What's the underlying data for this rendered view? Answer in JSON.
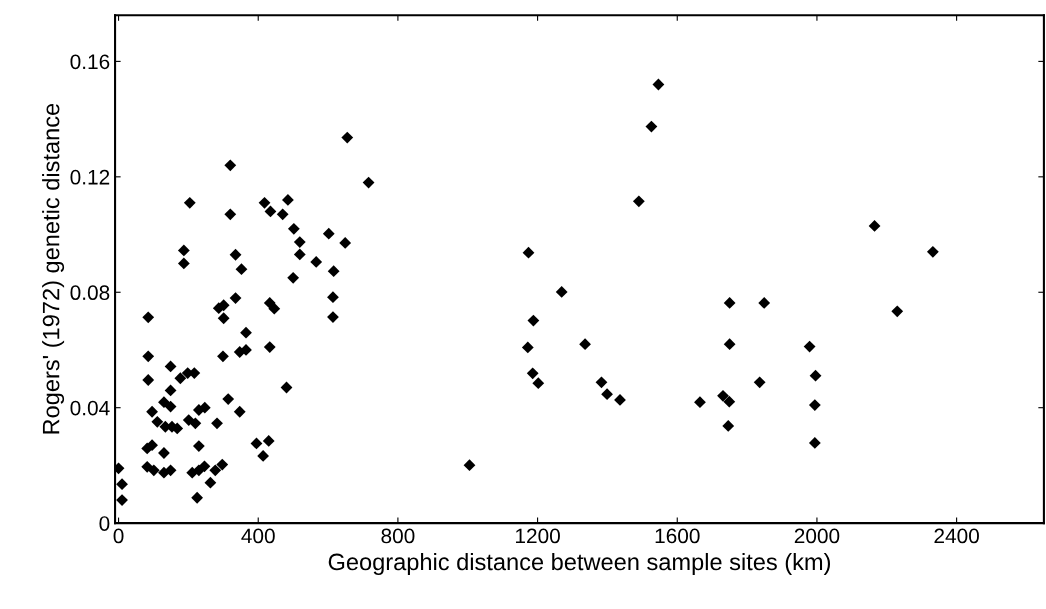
{
  "chart_data": {
    "type": "scatter",
    "xlabel": "Geographic distance between sample sites (km)",
    "ylabel": "Rogers' (1972) genetic distance",
    "xlim": [
      -10,
      2650
    ],
    "ylim": [
      0,
      0.176
    ],
    "xticks": [
      0,
      400,
      800,
      1200,
      1600,
      2000,
      2400
    ],
    "yticks": [
      0,
      0.04,
      0.08,
      0.12,
      0.16
    ],
    "marker": "diamond",
    "series": [
      {
        "color": "#000000",
        "x": [
          320,
          204,
          320,
          418,
          435,
          485,
          470,
          502,
          187,
          187,
          335,
          352,
          500,
          335,
          287,
          301,
          301,
          433,
          446,
          85,
          365,
          299,
          347,
          365,
          433,
          85,
          85,
          149,
          177,
          198,
          217,
          149,
          481,
          314,
          347,
          130,
          149,
          96,
          230,
          247,
          282,
          111,
          134,
          153,
          168,
          201,
          220,
          395,
          430,
          414,
          82,
          96,
          130,
          230,
          82,
          101,
          130,
          149,
          211,
          230,
          246,
          277,
          297,
          263,
          225,
          0,
          10,
          10,
          716,
          655,
          602,
          519,
          649,
          519,
          566,
          616,
          614,
          614,
          1005,
          1546,
          1526,
          1490,
          1174,
          1269,
          1188,
          1750,
          1172,
          1336,
          1750,
          1186,
          1202,
          1383,
          1399,
          1436,
          1665,
          1731,
          1749,
          1746,
          1836,
          2165,
          2332,
          1849,
          2230,
          1979,
          1996,
          1994,
          1994
        ],
        "values": [
          0.124,
          0.111,
          0.107,
          0.111,
          0.108,
          0.112,
          0.107,
          0.102,
          0.0945,
          0.09,
          0.093,
          0.088,
          0.085,
          0.078,
          0.0745,
          0.0755,
          0.071,
          0.0763,
          0.0743,
          0.0713,
          0.066,
          0.0578,
          0.0593,
          0.06,
          0.061,
          0.0578,
          0.0496,
          0.0543,
          0.0502,
          0.052,
          0.052,
          0.046,
          0.047,
          0.043,
          0.0386,
          0.0419,
          0.0404,
          0.0386,
          0.0392,
          0.04,
          0.0346,
          0.0351,
          0.0334,
          0.0334,
          0.0328,
          0.0357,
          0.0346,
          0.0276,
          0.0285,
          0.0233,
          0.0259,
          0.027,
          0.0243,
          0.0267,
          0.0195,
          0.0183,
          0.0175,
          0.0183,
          0.0175,
          0.0183,
          0.0197,
          0.0183,
          0.0203,
          0.014,
          0.0088,
          0.019,
          0.0135,
          0.008,
          0.118,
          0.1336,
          0.1003,
          0.0974,
          0.0971,
          0.0931,
          0.0905,
          0.0873,
          0.0783,
          0.0714,
          0.0201,
          0.152,
          0.1374,
          0.1115,
          0.0937,
          0.0801,
          0.0702,
          0.0763,
          0.0609,
          0.062,
          0.062,
          0.0519,
          0.0485,
          0.0488,
          0.0447,
          0.0427,
          0.0419,
          0.0441,
          0.0421,
          0.0337,
          0.0488,
          0.103,
          0.094,
          0.0763,
          0.0734,
          0.0612,
          0.0511,
          0.0409,
          0.0278
        ]
      }
    ]
  }
}
